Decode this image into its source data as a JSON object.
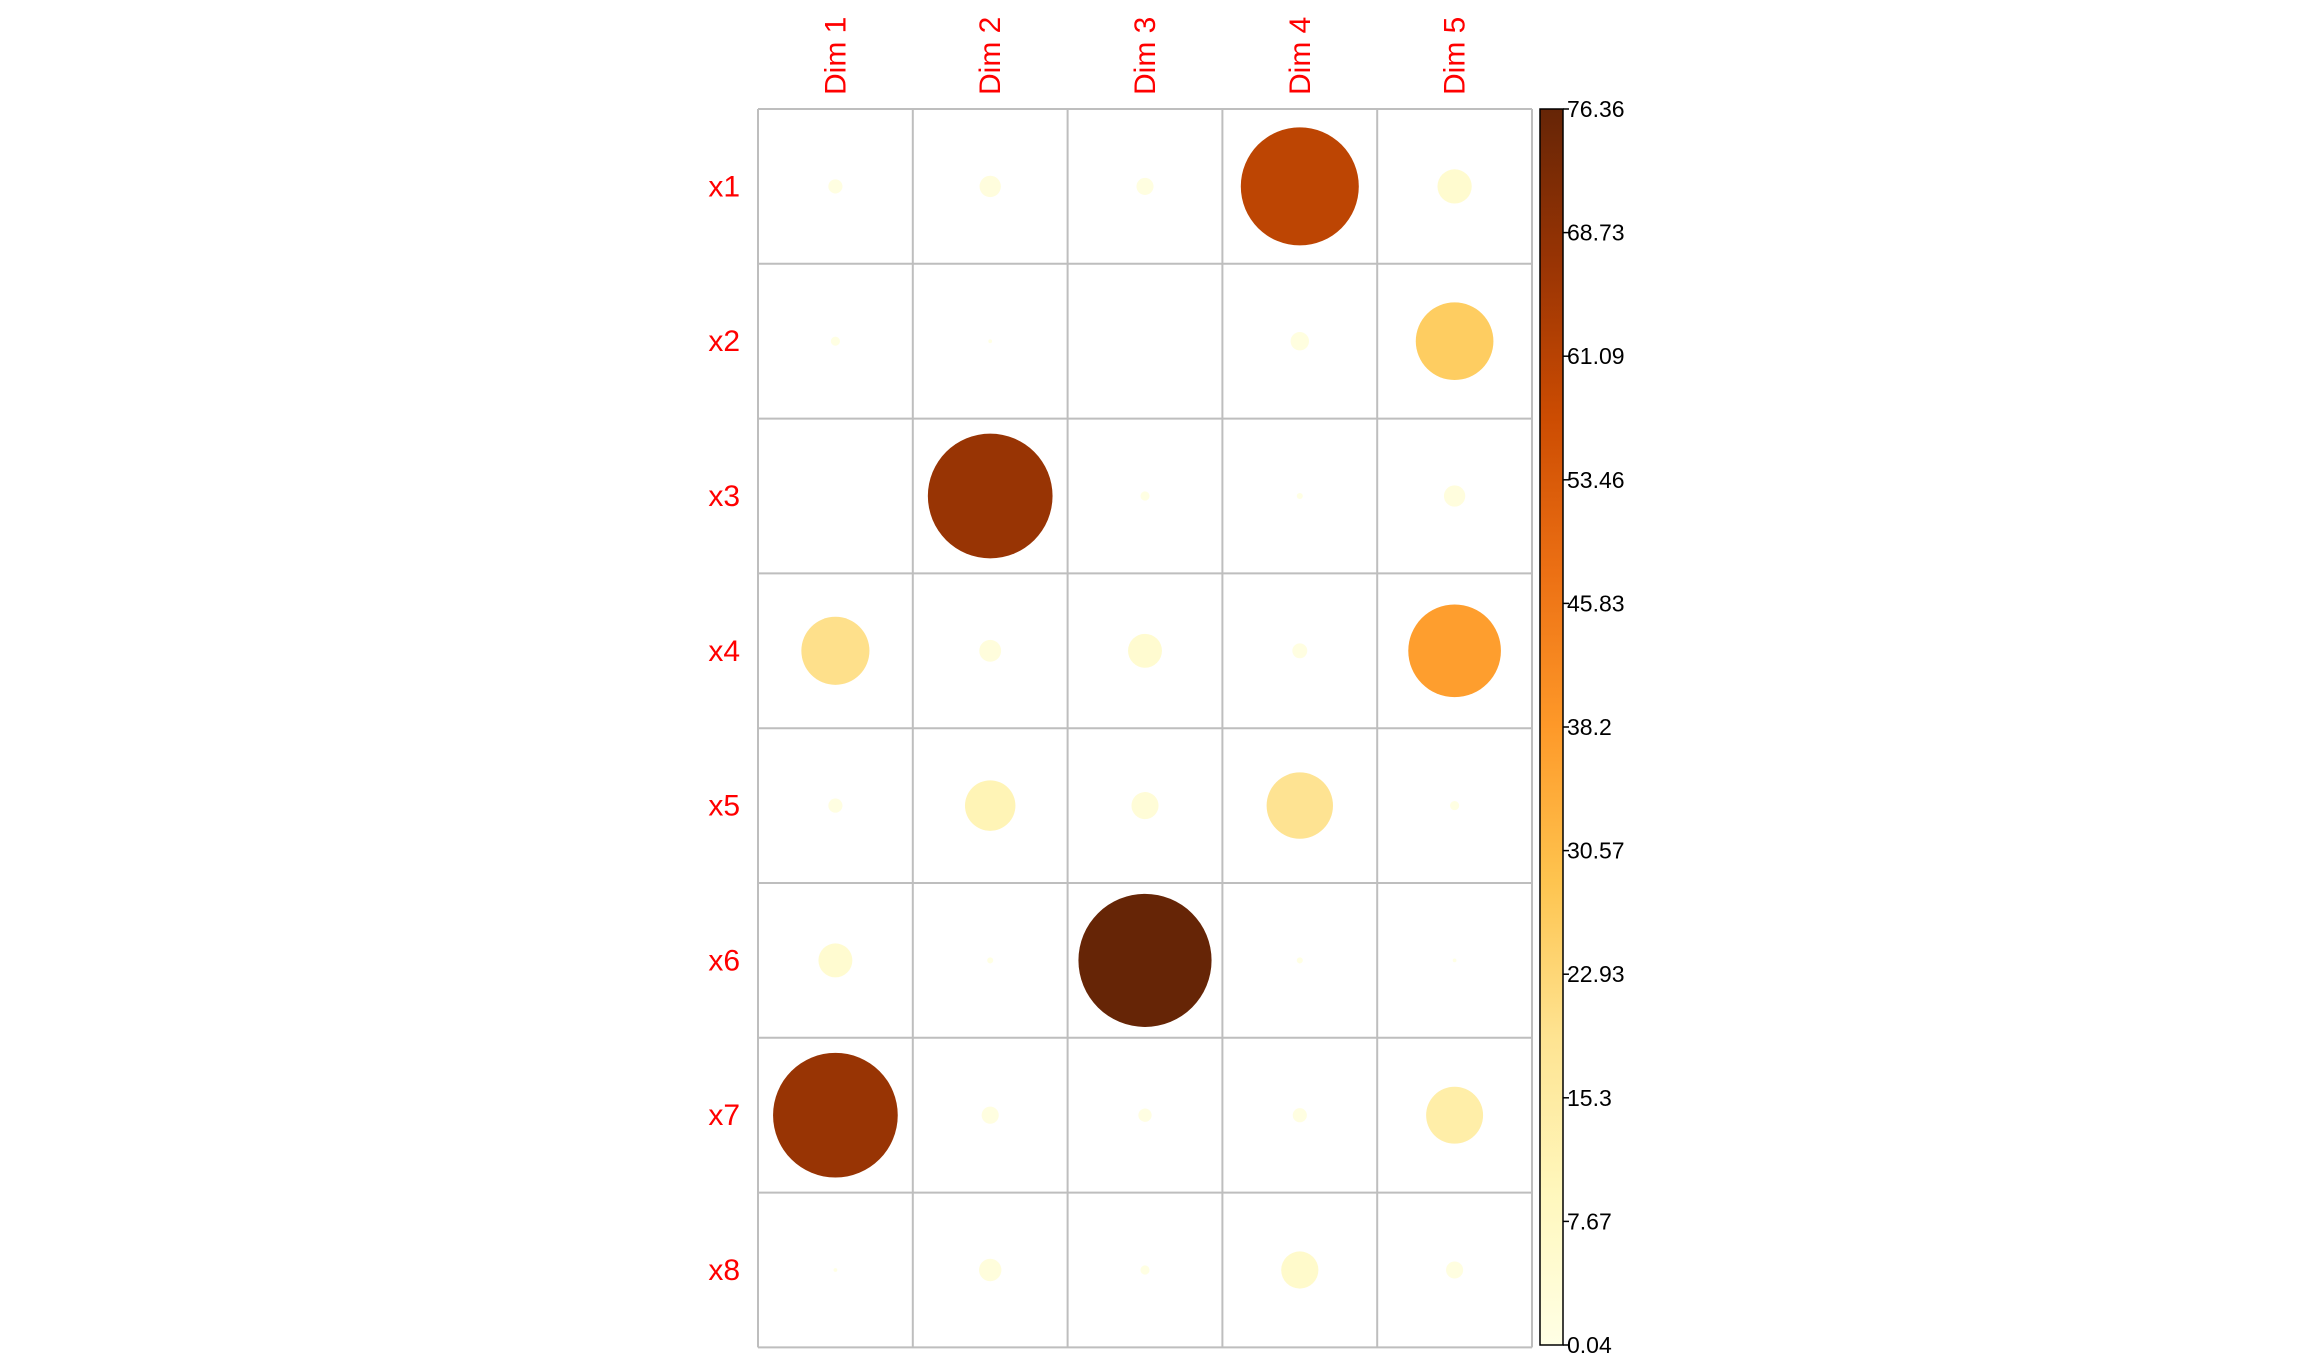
{
  "chart_data": {
    "type": "heatmap",
    "subtype": "correlation-circle-plot",
    "title": "",
    "xlabel": "",
    "ylabel": "",
    "columns": [
      "Dim 1",
      "Dim 2",
      "Dim 3",
      "Dim 4",
      "Dim 5"
    ],
    "rows": [
      "x1",
      "x2",
      "x3",
      "x4",
      "x5",
      "x6",
      "x7",
      "x8"
    ],
    "values": [
      [
        0.9,
        2.0,
        1.3,
        60.0,
        5.1
      ],
      [
        0.4,
        0.1,
        0.04,
        1.5,
        26.0
      ],
      [
        0.04,
        67.0,
        0.4,
        0.2,
        2.0
      ],
      [
        20.0,
        2.1,
        5.0,
        1.0,
        37.0
      ],
      [
        0.9,
        11.0,
        3.2,
        19.0,
        0.4
      ],
      [
        5.0,
        0.2,
        76.36,
        0.2,
        0.1
      ],
      [
        67.0,
        1.3,
        0.8,
        0.9,
        14.0
      ],
      [
        0.1,
        2.2,
        0.4,
        6.0,
        1.3
      ]
    ],
    "color_range": [
      0.04,
      76.36
    ],
    "colorbar_ticks": [
      "76.36",
      "68.73",
      "61.09",
      "53.46",
      "45.83",
      "38.2",
      "30.57",
      "22.93",
      "15.3",
      "7.67",
      "0.04"
    ],
    "colorscale": [
      "#ffffe5",
      "#fff7bc",
      "#fee391",
      "#fec44f",
      "#fe9929",
      "#ec7014",
      "#cc4c02",
      "#993404",
      "#662506"
    ],
    "label_color": "#ff0000",
    "grid": true,
    "legend_position": "right"
  }
}
